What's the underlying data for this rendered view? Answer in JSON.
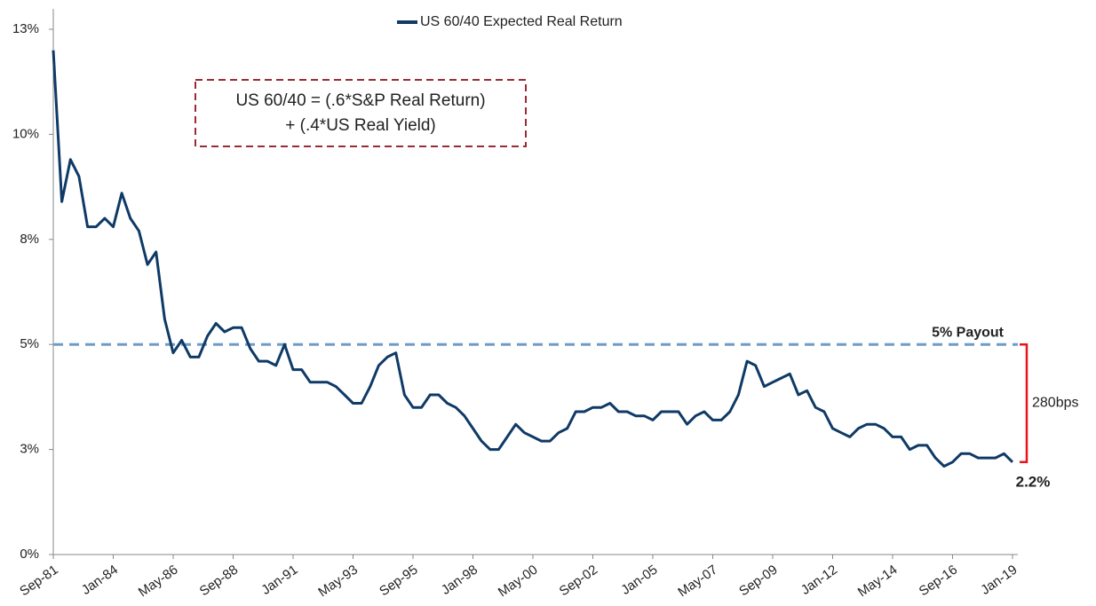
{
  "chart_data": {
    "type": "line",
    "categories": [
      "Sep-81",
      null,
      null,
      null,
      null,
      null,
      null,
      "Jan-84",
      null,
      null,
      null,
      null,
      null,
      null,
      "May-86",
      null,
      null,
      null,
      null,
      null,
      null,
      "Sep-88",
      null,
      null,
      null,
      null,
      null,
      null,
      "Jan-91",
      null,
      null,
      null,
      null,
      null,
      null,
      "May-93",
      null,
      null,
      null,
      null,
      null,
      null,
      "Sep-95",
      null,
      null,
      null,
      null,
      null,
      null,
      "Jan-98",
      null,
      null,
      null,
      null,
      null,
      null,
      "May-00",
      null,
      null,
      null,
      null,
      null,
      null,
      "Sep-02",
      null,
      null,
      null,
      null,
      null,
      null,
      "Jan-05",
      null,
      null,
      null,
      null,
      null,
      null,
      "May-07",
      null,
      null,
      null,
      null,
      null,
      null,
      "Sep-09",
      null,
      null,
      null,
      null,
      null,
      null,
      "Jan-12",
      null,
      null,
      null,
      null,
      null,
      null,
      "May-14",
      null,
      null,
      null,
      null,
      null,
      null,
      "Sep-16",
      null,
      null,
      null,
      null,
      null,
      null,
      "Jan-19"
    ],
    "series": [
      {
        "name": "US 60/40 Expected Real Return",
        "color": "#0f3a66",
        "values": [
          12.0,
          8.4,
          9.4,
          9.0,
          7.8,
          7.8,
          8.0,
          7.8,
          8.6,
          8.0,
          7.7,
          6.9,
          7.2,
          5.6,
          4.8,
          5.1,
          4.7,
          4.7,
          5.2,
          5.5,
          5.3,
          5.4,
          5.4,
          4.9,
          4.6,
          4.6,
          4.5,
          5.0,
          4.4,
          4.4,
          4.1,
          4.1,
          4.1,
          4.0,
          3.8,
          3.6,
          3.6,
          4.0,
          4.5,
          4.7,
          4.8,
          3.8,
          3.5,
          3.5,
          3.8,
          3.8,
          3.6,
          3.5,
          3.3,
          3.0,
          2.7,
          2.5,
          2.5,
          2.8,
          3.1,
          2.9,
          2.8,
          2.7,
          2.7,
          2.9,
          3.0,
          3.4,
          3.4,
          3.5,
          3.5,
          3.6,
          3.4,
          3.4,
          3.3,
          3.3,
          3.2,
          3.4,
          3.4,
          3.4,
          3.1,
          3.3,
          3.4,
          3.2,
          3.2,
          3.4,
          3.8,
          4.6,
          4.5,
          4.0,
          4.1,
          4.2,
          4.3,
          3.8,
          3.9,
          3.5,
          3.4,
          3.0,
          2.9,
          2.8,
          3.0,
          3.1,
          3.1,
          3.0,
          2.8,
          2.8,
          2.5,
          2.6,
          2.6,
          2.3,
          2.1,
          2.2,
          2.4,
          2.4,
          2.3,
          2.3,
          2.3,
          2.4,
          2.2
        ]
      }
    ],
    "last_value_label": "2.2%",
    "ylim": [
      0,
      12.5
    ],
    "yticks": [
      {
        "value": 0,
        "label": "0%"
      },
      {
        "value": 2.5,
        "label": "3%"
      },
      {
        "value": 5,
        "label": "5%"
      },
      {
        "value": 7.5,
        "label": "8%"
      },
      {
        "value": 10,
        "label": "10%"
      },
      {
        "value": 12.5,
        "label": "13%"
      }
    ],
    "reference_line": {
      "value": 5,
      "label": "5% Payout",
      "color": "#6f9bc8"
    },
    "bracket_label": "280bps",
    "bracket_color": "#e8141c",
    "annotation": [
      "US 60/40 = (.6*S&P Real Return)",
      "+ (.4*US Real Yield)"
    ],
    "grid": false
  }
}
